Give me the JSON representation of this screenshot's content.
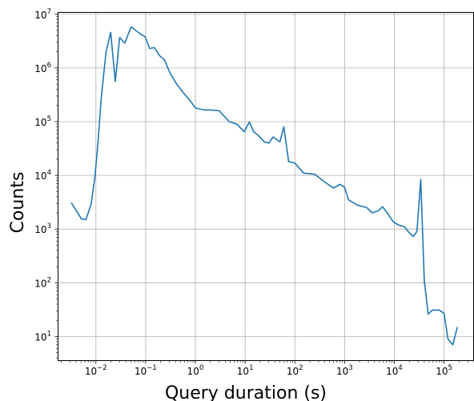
{
  "chart_data": {
    "type": "line",
    "title": "",
    "xlabel": "Query duration (s)",
    "ylabel": "Counts",
    "x_scale": "log",
    "y_scale": "log",
    "xlim": [
      0.0017,
      400000
    ],
    "ylim": [
      3.5,
      11000000
    ],
    "grid": true,
    "x_ticks": [
      {
        "value": 0.01,
        "base": "10",
        "exp": "−2"
      },
      {
        "value": 0.1,
        "base": "10",
        "exp": "−1"
      },
      {
        "value": 1,
        "base": "10",
        "exp": "0"
      },
      {
        "value": 10,
        "base": "10",
        "exp": "1"
      },
      {
        "value": 100,
        "base": "10",
        "exp": "2"
      },
      {
        "value": 1000,
        "base": "10",
        "exp": "3"
      },
      {
        "value": 10000,
        "base": "10",
        "exp": "4"
      },
      {
        "value": 100000,
        "base": "10",
        "exp": "5"
      }
    ],
    "y_ticks": [
      {
        "value": 10,
        "base": "10",
        "exp": "1"
      },
      {
        "value": 100,
        "base": "10",
        "exp": "2"
      },
      {
        "value": 1000,
        "base": "10",
        "exp": "3"
      },
      {
        "value": 10000,
        "base": "10",
        "exp": "4"
      },
      {
        "value": 100000,
        "base": "10",
        "exp": "5"
      },
      {
        "value": 1000000,
        "base": "10",
        "exp": "6"
      },
      {
        "value": 10000000,
        "base": "10",
        "exp": "7"
      }
    ],
    "series": [
      {
        "color": "#1f77b4",
        "points": [
          [
            0.0032,
            3100
          ],
          [
            0.0051,
            1550
          ],
          [
            0.0063,
            1500
          ],
          [
            0.008,
            2900
          ],
          [
            0.0095,
            9000
          ],
          [
            0.011,
            40000
          ],
          [
            0.0128,
            280000
          ],
          [
            0.016,
            2000000
          ],
          [
            0.0198,
            4600000
          ],
          [
            0.0245,
            560000
          ],
          [
            0.03,
            3700000
          ],
          [
            0.038,
            2900000
          ],
          [
            0.051,
            5800000
          ],
          [
            0.078,
            4300000
          ],
          [
            0.098,
            3800000
          ],
          [
            0.12,
            2300000
          ],
          [
            0.15,
            2400000
          ],
          [
            0.19,
            1700000
          ],
          [
            0.24,
            1400000
          ],
          [
            0.31,
            800000
          ],
          [
            0.42,
            500000
          ],
          [
            0.58,
            340000
          ],
          [
            0.8,
            240000
          ],
          [
            1.0,
            180000
          ],
          [
            1.5,
            165000
          ],
          [
            2.0,
            165000
          ],
          [
            3.0,
            160000
          ],
          [
            4.8,
            100000
          ],
          [
            6.8,
            90000
          ],
          [
            9.6,
            65000
          ],
          [
            12.2,
            99000
          ],
          [
            14.8,
            65000
          ],
          [
            18.5,
            55000
          ],
          [
            24.4,
            42000
          ],
          [
            30.0,
            40000
          ],
          [
            36.6,
            52000
          ],
          [
            50.0,
            42000
          ],
          [
            60.0,
            80000
          ],
          [
            75.0,
            18000
          ],
          [
            100.0,
            17000
          ],
          [
            150.0,
            11000
          ],
          [
            250.0,
            10500
          ],
          [
            400.0,
            7500
          ],
          [
            600.0,
            5800
          ],
          [
            800.0,
            6800
          ],
          [
            1000.0,
            6000
          ],
          [
            1200.0,
            3500
          ],
          [
            1800.0,
            2800
          ],
          [
            2800.0,
            2500
          ],
          [
            3600.0,
            2000
          ],
          [
            4800.0,
            2200
          ],
          [
            5800.0,
            2600
          ],
          [
            7200.0,
            2000
          ],
          [
            9600.0,
            1350
          ],
          [
            12000.0,
            1200
          ],
          [
            16000.0,
            1100
          ],
          [
            20000.0,
            850
          ],
          [
            24000.0,
            730
          ],
          [
            28500.0,
            900
          ],
          [
            34000.0,
            8400
          ],
          [
            40000.0,
            110
          ],
          [
            48000.0,
            26
          ],
          [
            58000.0,
            31
          ],
          [
            80000.0,
            31
          ],
          [
            100000.0,
            27
          ],
          [
            120000.0,
            9
          ],
          [
            150000.0,
            7
          ],
          [
            185000.0,
            15
          ]
        ]
      }
    ]
  }
}
